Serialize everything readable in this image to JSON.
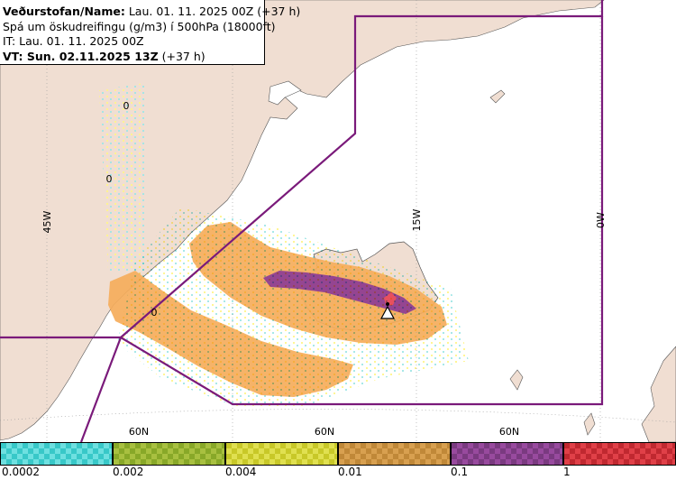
{
  "header": {
    "line1_bold": "Veðurstofan/Name:",
    "line1_rest": " Lau. 01. 11. 2025 00Z (+37 h)",
    "line2": "Spá um öskudreifingu (g/m3) í 500hPa (18000ft)",
    "line3": "IT: Lau. 01. 11. 2025 00Z",
    "line4_bold": "VT: Sun. 02.11.2025 13Z",
    "line4_rest": " (+37 h)"
  },
  "map": {
    "longitude_labels": [
      "45W",
      "15W",
      "0W"
    ],
    "latitude_labels": [
      "60N",
      "60N",
      "60N"
    ],
    "contour_labels": [
      "0",
      "0",
      "0"
    ],
    "colors": {
      "land": "#f0ded2",
      "sea": "#ffffff",
      "zone_boundary": "#7a1a7a",
      "ash_low": "#f5ac5b",
      "ash_high": "#8b3a96",
      "ash_peak": "#e7505e"
    }
  },
  "legend": {
    "swatches": [
      {
        "color": "#38c8c8",
        "alt": "#6ee0e0"
      },
      {
        "color": "#88a828",
        "alt": "#a8c040"
      },
      {
        "color": "#c8c828",
        "alt": "#e0e050"
      },
      {
        "color": "#c08838",
        "alt": "#d8a050"
      },
      {
        "color": "#7a3a80",
        "alt": "#984a9e"
      },
      {
        "color": "#c02830",
        "alt": "#e04048"
      }
    ],
    "tick_labels": [
      "0.0002",
      "0.002",
      "0.004",
      "0.01",
      "0.1",
      "1"
    ]
  }
}
